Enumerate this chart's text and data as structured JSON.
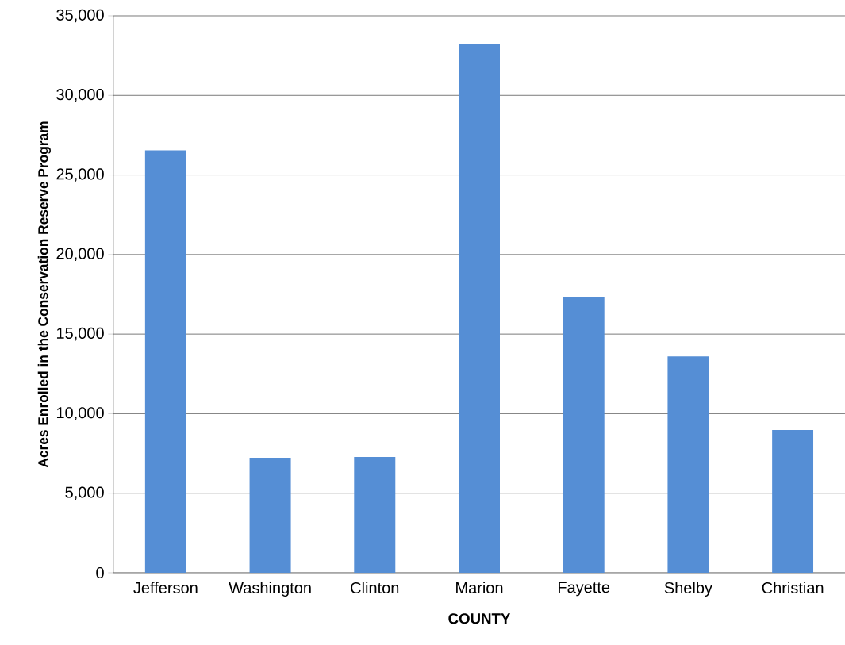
{
  "chart_data": {
    "type": "bar",
    "xlabel": "COUNTY",
    "ylabel": "Acres Enrolled in the Conservation Reserve Program",
    "categories": [
      "Jefferson",
      "Washington",
      "Clinton",
      "Marion",
      "Fayette",
      "Shelby",
      "Christian"
    ],
    "values": [
      26550,
      7230,
      7280,
      33250,
      17350,
      13600,
      8970
    ],
    "color": "#558ed5",
    "ylim": [
      0,
      35000
    ],
    "yticks": [
      {
        "value": 0,
        "label": "0"
      },
      {
        "value": 5000,
        "label": "5,000"
      },
      {
        "value": 10000,
        "label": "10,000"
      },
      {
        "value": 15000,
        "label": "15,000"
      },
      {
        "value": 20000,
        "label": "20,000"
      },
      {
        "value": 25000,
        "label": "25,000"
      },
      {
        "value": 30000,
        "label": "30,000"
      },
      {
        "value": 35000,
        "label": "35,000"
      }
    ],
    "grid": "y"
  }
}
